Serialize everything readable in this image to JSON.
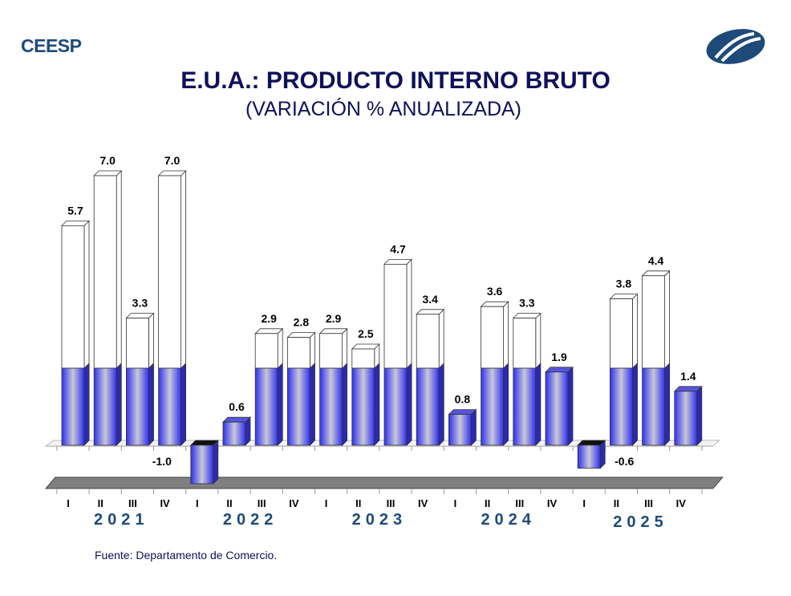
{
  "header": {
    "brand": "CEESP",
    "title": "E.U.A.: PRODUCTO INTERNO BRUTO",
    "subtitle": "(VARIACIÓN % ANUALIZADA)"
  },
  "footer": {
    "source": "Fuente: Departamento de Comercio."
  },
  "colors": {
    "brand": "#1e4a7a",
    "title": "#10105a",
    "bar_blue": "#3a3aee",
    "floor": "#808080"
  },
  "chart_data": {
    "type": "bar",
    "title": "E.U.A.: PRODUCTO INTERNO BRUTO",
    "subtitle": "(VARIACIÓN % ANUALIZADA)",
    "xlabel": "",
    "ylabel": "",
    "years": [
      "2021",
      "2022",
      "2023",
      "2024",
      "2025"
    ],
    "quarters": [
      "I",
      "II",
      "III",
      "IV"
    ],
    "categories": [
      "2021-I",
      "2021-II",
      "2021-III",
      "2021-IV",
      "2022-I",
      "2022-II",
      "2022-III",
      "2022-IV",
      "2023-I",
      "2023-II",
      "2023-III",
      "2023-IV",
      "2024-I",
      "2024-II",
      "2024-III",
      "2024-IV",
      "2025-I",
      "2025-II",
      "2025-III",
      "2025-IV"
    ],
    "values": [
      5.7,
      7.0,
      3.3,
      7.0,
      -1.0,
      0.6,
      2.9,
      2.8,
      2.9,
      2.5,
      4.7,
      3.4,
      0.8,
      3.6,
      3.3,
      1.9,
      -0.6,
      3.8,
      4.4,
      1.4
    ],
    "labels": [
      "5.7",
      "7.0",
      "3.3",
      "7.0",
      "-1.0",
      "0.6",
      "2.9",
      "2.8",
      "2.9",
      "2.5",
      "4.7",
      "3.4",
      "0.8",
      "3.6",
      "3.3",
      "1.9",
      "-0.6",
      "3.8",
      "4.4",
      "1.4"
    ],
    "blue_fill_up_to": 2.0,
    "ylim": [
      -1.0,
      7.0
    ],
    "grid": false
  }
}
